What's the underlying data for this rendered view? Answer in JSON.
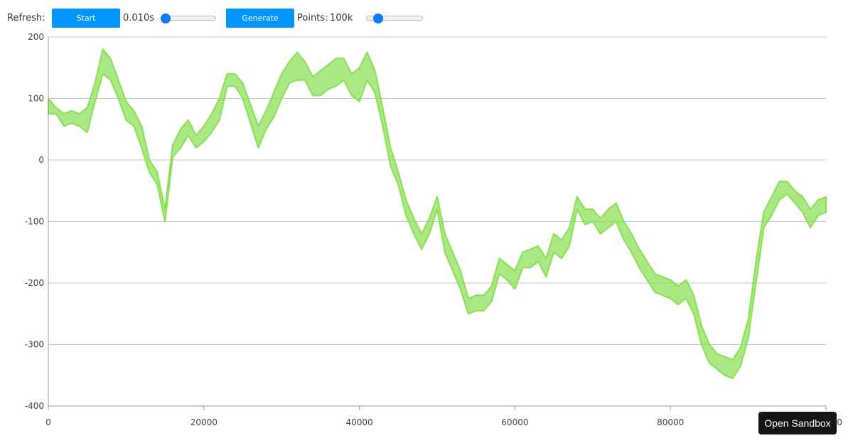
{
  "toolbar": {
    "refresh_label": "Refresh:",
    "start_label": "Start",
    "refresh_value": "0.010s",
    "refresh_slider_fraction": 0.0,
    "generate_label": "Generate",
    "points_label": "Points:",
    "points_value": "100k",
    "points_slider_fraction": 0.15
  },
  "sandbox_button": {
    "label": "Open Sandbox"
  },
  "colors": {
    "accent_button": "#0395ff",
    "slider_thumb": "#0a7cff",
    "series": "#8de05a",
    "grid": "#c8c8c8"
  },
  "chart_data": {
    "type": "area",
    "grid": true,
    "xlim": [
      0,
      100000
    ],
    "ylim": [
      -400,
      200
    ],
    "x_ticks": [
      "0",
      "20000",
      "40000",
      "60000",
      "80000",
      "100000"
    ],
    "y_ticks": [
      "200",
      "100",
      "0",
      "-100",
      "-200",
      "-300",
      "-400"
    ],
    "series": [
      {
        "x": [
          0,
          1000,
          2000,
          3000,
          4000,
          5000,
          6000,
          7000,
          8000,
          9000,
          10000,
          11000,
          12000,
          13000,
          14000,
          15000,
          16000,
          17000,
          18000,
          19000,
          20000,
          21000,
          22000,
          23000,
          24000,
          25000,
          26000,
          27000,
          28000,
          29000,
          30000,
          31000,
          32000,
          33000,
          34000,
          35000,
          36000,
          37000,
          38000,
          39000,
          40000,
          41000,
          42000,
          43000,
          44000,
          45000,
          46000,
          47000,
          48000,
          49000,
          50000,
          51000,
          52000,
          53000,
          54000,
          55000,
          56000,
          57000,
          58000,
          59000,
          60000,
          61000,
          62000,
          63000,
          64000,
          65000,
          66000,
          67000,
          68000,
          69000,
          70000,
          71000,
          72000,
          73000,
          74000,
          75000,
          76000,
          77000,
          78000,
          79000,
          80000,
          81000,
          82000,
          83000,
          84000,
          85000,
          86000,
          87000,
          88000,
          89000,
          90000,
          91000,
          92000,
          93000,
          94000,
          95000,
          96000,
          97000,
          98000,
          99000,
          100000
        ],
        "low": [
          75,
          75,
          55,
          60,
          55,
          45,
          95,
          140,
          130,
          100,
          65,
          55,
          20,
          -20,
          -40,
          -100,
          5,
          20,
          40,
          20,
          30,
          45,
          65,
          120,
          120,
          100,
          60,
          20,
          50,
          70,
          100,
          125,
          130,
          130,
          105,
          105,
          115,
          120,
          130,
          105,
          95,
          130,
          110,
          55,
          -10,
          -40,
          -90,
          -120,
          -145,
          -120,
          -80,
          -150,
          -180,
          -210,
          -250,
          -245,
          -245,
          -230,
          -185,
          -195,
          -210,
          -175,
          -175,
          -165,
          -190,
          -150,
          -160,
          -140,
          -80,
          -105,
          -100,
          -120,
          -110,
          -100,
          -130,
          -150,
          -175,
          -195,
          -215,
          -220,
          -225,
          -235,
          -225,
          -250,
          -300,
          -330,
          -340,
          -350,
          -355,
          -335,
          -290,
          -200,
          -110,
          -90,
          -65,
          -55,
          -70,
          -85,
          -110,
          -90,
          -85
        ],
        "high": [
          100,
          85,
          75,
          80,
          75,
          85,
          125,
          180,
          165,
          130,
          95,
          80,
          55,
          0,
          -20,
          -80,
          25,
          50,
          65,
          40,
          55,
          75,
          100,
          140,
          140,
          125,
          90,
          55,
          80,
          110,
          140,
          160,
          175,
          160,
          135,
          145,
          155,
          165,
          165,
          140,
          150,
          175,
          145,
          85,
          20,
          -20,
          -65,
          -95,
          -120,
          -95,
          -60,
          -120,
          -150,
          -180,
          -225,
          -220,
          -220,
          -205,
          -160,
          -170,
          -180,
          -150,
          -145,
          -140,
          -160,
          -120,
          -130,
          -110,
          -60,
          -80,
          -80,
          -95,
          -80,
          -70,
          -100,
          -120,
          -145,
          -165,
          -185,
          -190,
          -195,
          -205,
          -195,
          -220,
          -270,
          -300,
          -315,
          -320,
          -325,
          -305,
          -260,
          -165,
          -85,
          -60,
          -35,
          -35,
          -50,
          -60,
          -80,
          -65,
          -60
        ]
      }
    ]
  }
}
